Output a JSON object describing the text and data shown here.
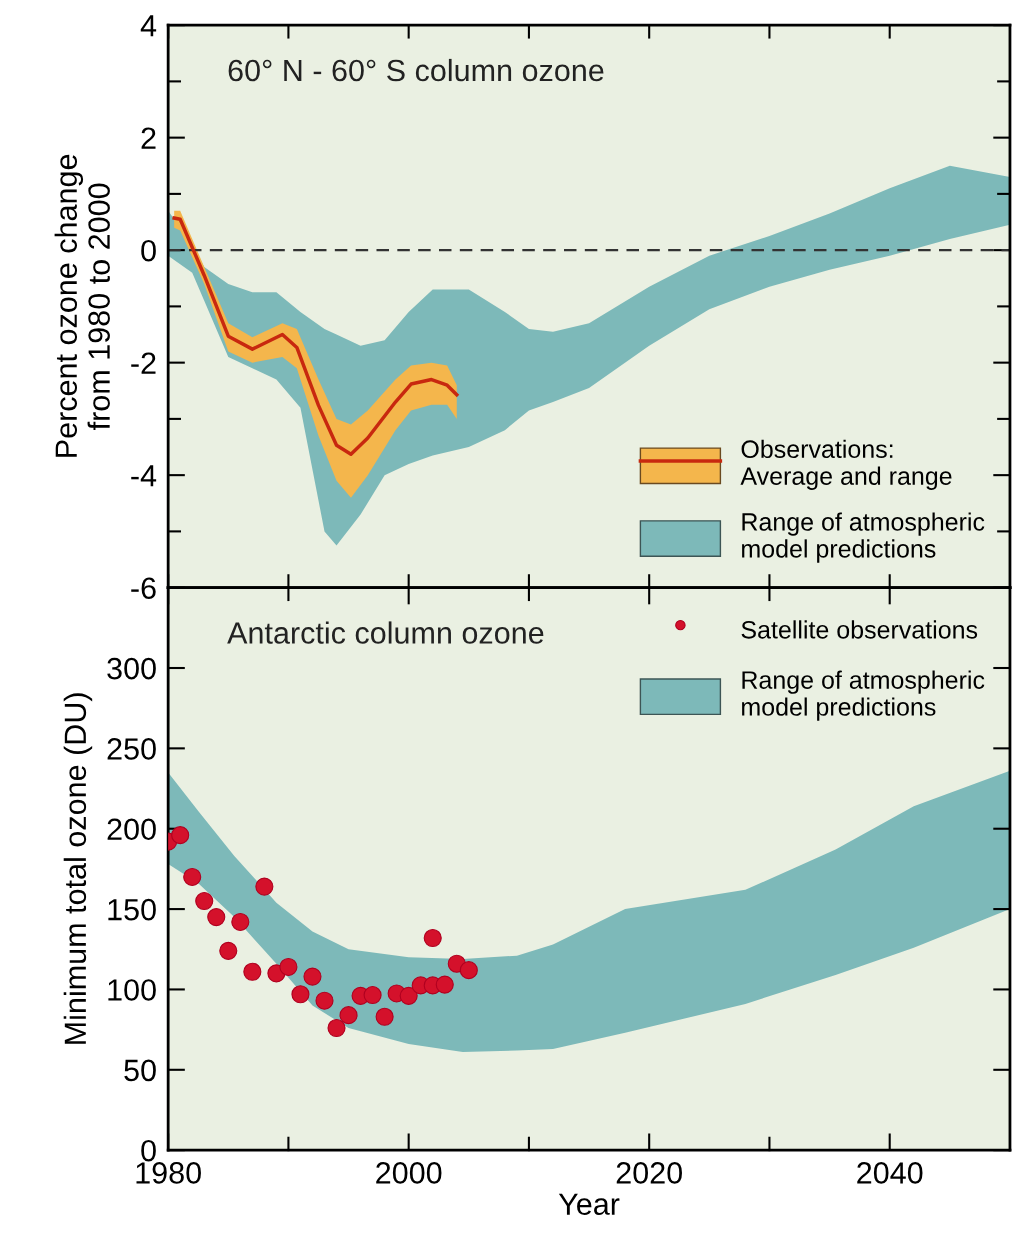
{
  "chart_data": [
    {
      "type": "line",
      "title": "60° N - 60° S column ozone",
      "ylabel": "Percent ozone change\nfrom 1980 to 2000",
      "xlim": [
        1980,
        2050
      ],
      "ylim": [
        -6,
        4
      ],
      "xticks": [
        {
          "value": 1980,
          "label": null
        },
        {
          "value": 1990,
          "label": null
        },
        {
          "value": 2000,
          "label": null
        },
        {
          "value": 2010,
          "label": null
        },
        {
          "value": 2020,
          "label": null
        },
        {
          "value": 2030,
          "label": null
        },
        {
          "value": 2040,
          "label": null
        }
      ],
      "yticks": [
        -6,
        {
          "value": -5,
          "label": null
        },
        -4,
        {
          "value": -3,
          "label": null
        },
        -2,
        {
          "value": -1,
          "label": null
        },
        0,
        {
          "value": 1,
          "label": null
        },
        2,
        {
          "value": 3,
          "label": null
        },
        4
      ],
      "tick_labels": "y",
      "legend": "bottom right",
      "grid": false,
      "ref_lines": [
        {
          "axis": "y",
          "value": 0,
          "label": null,
          "color": "#333333",
          "line_style": "dashed"
        }
      ],
      "series": [
        {
          "name": "Range of atmospheric\nmodel predictions",
          "type": "area",
          "color": "#7db9b9",
          "x": [
            1980,
            1982,
            1983,
            1985,
            1987,
            1989,
            1991,
            1993,
            1994,
            1996,
            1998,
            2000,
            2002,
            2005,
            2008,
            2010,
            2012,
            2015,
            2020,
            2025,
            2030,
            2035,
            2040,
            2045,
            2050
          ],
          "values": [
            null,
            null,
            null,
            null,
            null,
            null,
            null,
            null,
            null,
            null,
            null,
            null,
            null,
            null,
            null,
            null,
            null,
            null,
            null,
            null,
            null,
            null,
            null,
            null,
            null
          ],
          "lower": [
            -0.1,
            -0.4,
            -0.9,
            -1.9,
            -2.1,
            -2.3,
            -2.8,
            -5.0,
            -5.25,
            -4.7,
            -4.0,
            -3.8,
            -3.65,
            -3.5,
            -3.2,
            -2.85,
            -2.7,
            -2.45,
            -1.7,
            -1.05,
            -0.65,
            -0.35,
            -0.1,
            0.2,
            0.45
          ],
          "upper": [
            0.7,
            0.1,
            -0.3,
            -0.6,
            -0.75,
            -0.75,
            -1.1,
            -1.4,
            -1.5,
            -1.7,
            -1.6,
            -1.1,
            -0.7,
            -0.7,
            -1.1,
            -1.4,
            -1.45,
            -1.3,
            -0.65,
            -0.1,
            0.25,
            0.65,
            1.1,
            1.5,
            1.3
          ]
        },
        {
          "type": "area",
          "color": "#f4b64c",
          "x": [
            1980.5,
            1981,
            1983,
            1985,
            1987,
            1989.5,
            1990.7,
            1992.5,
            1994,
            1995.2,
            1996.6,
            1998.9,
            2000.2,
            2001.9,
            2003.2,
            2004
          ],
          "values": [
            null,
            null,
            null,
            null,
            null,
            null,
            null,
            null,
            null,
            null,
            null,
            null,
            null,
            null,
            null,
            null
          ],
          "upper": [
            0.7,
            0.7,
            -0.3,
            -1.3,
            -1.55,
            -1.3,
            -1.4,
            -2.3,
            -3.0,
            -3.1,
            -2.85,
            -2.3,
            -2.05,
            -2.0,
            -2.05,
            -2.4
          ],
          "lower": [
            0.4,
            0.35,
            -0.6,
            -1.8,
            -2.0,
            -1.9,
            -2.1,
            -3.3,
            -4.1,
            -4.4,
            -4.0,
            -3.2,
            -2.85,
            -2.75,
            -2.75,
            -3.0
          ]
        },
        {
          "name": "Observations:\nAverage and range",
          "color": "#c8280f",
          "x": [
            1980.5,
            1981,
            1983,
            1985,
            1987,
            1989.5,
            1990.7,
            1992.5,
            1994,
            1995.2,
            1996.6,
            1998.9,
            2000.2,
            2001.9,
            2003.2,
            2004
          ],
          "values": [
            0.57,
            0.55,
            -0.45,
            -1.53,
            -1.76,
            -1.5,
            -1.73,
            -2.76,
            -3.47,
            -3.63,
            -3.34,
            -2.7,
            -2.38,
            -2.3,
            -2.4,
            -2.57
          ]
        }
      ]
    },
    {
      "type": "scatter",
      "title": "Antarctic column ozone",
      "xlabel": "Year",
      "ylabel": "Minimum total ozone (DU)",
      "xlim": [
        1980,
        2050
      ],
      "ylim": [
        0,
        350
      ],
      "xticks": [
        1980,
        {
          "value": 1990,
          "label": null
        },
        2000,
        {
          "value": 2010,
          "label": null
        },
        2020,
        {
          "value": 2030,
          "label": null
        },
        2040
      ],
      "yticks": [
        0,
        50,
        100,
        150,
        200,
        250,
        300
      ],
      "legend": "top right",
      "grid": false,
      "series": [
        {
          "name": "Range of atmospheric\nmodel predictions",
          "type": "area",
          "color": "#7db9b9",
          "x": [
            1980,
            1982.5,
            1985.5,
            1989,
            1992,
            1995,
            2000,
            2004.5,
            2009,
            2012,
            2018,
            2028,
            2035.5,
            2042,
            2050
          ],
          "values": [
            null,
            null,
            null,
            null,
            null,
            null,
            null,
            null,
            null,
            null,
            null,
            null,
            null,
            null,
            null
          ],
          "lower": [
            178,
            166,
            145,
            116,
            90,
            76,
            66,
            61,
            62,
            63,
            73,
            91,
            109,
            126,
            150
          ],
          "upper": [
            235,
            211,
            183,
            154,
            136,
            125,
            120,
            119,
            121,
            128,
            150,
            162,
            187,
            214,
            236
          ]
        },
        {
          "name": "Satellite observations",
          "marker": "circle",
          "color": "#d4112b",
          "x": [
            1980,
            1981,
            1982,
            1983,
            1984,
            1985,
            1986,
            1987,
            1988,
            1989,
            1990,
            1991,
            1992,
            1993,
            1994,
            1995,
            1996,
            1997,
            1998,
            1999,
            2000,
            2001,
            2002,
            2002,
            2003,
            2004,
            2005
          ],
          "values": [
            192,
            196,
            170,
            155,
            145,
            124,
            142,
            111,
            164,
            110,
            114,
            97,
            108,
            93,
            76,
            84,
            96,
            96.5,
            83,
            97.5,
            96,
            102.5,
            132,
            102.5,
            103,
            116,
            112
          ]
        }
      ]
    }
  ]
}
